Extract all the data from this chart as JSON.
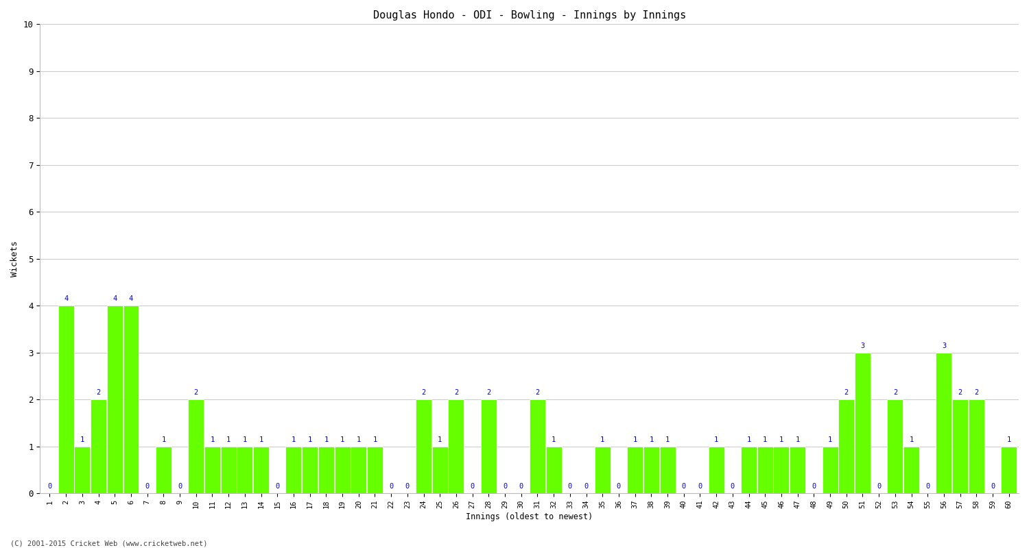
{
  "title": "Douglas Hondo - ODI - Bowling - Innings by Innings",
  "xlabel": "Innings (oldest to newest)",
  "ylabel": "Wickets",
  "background_color": "#ffffff",
  "bar_color": "#66ff00",
  "label_color": "#0000cc",
  "ylim": [
    0,
    10
  ],
  "yticks": [
    0,
    1,
    2,
    3,
    4,
    5,
    6,
    7,
    8,
    9,
    10
  ],
  "categories": [
    "1",
    "2",
    "3",
    "4",
    "5",
    "6",
    "7",
    "8",
    "9",
    "10",
    "11",
    "12",
    "13",
    "14",
    "15",
    "16",
    "17",
    "18",
    "19",
    "20",
    "21",
    "22",
    "23",
    "24",
    "25",
    "26",
    "27",
    "28",
    "29",
    "30",
    "31",
    "32",
    "33",
    "34",
    "35",
    "36",
    "37",
    "38",
    "39",
    "40",
    "41",
    "42",
    "43",
    "44",
    "45",
    "46",
    "47",
    "48",
    "49",
    "50",
    "51",
    "52",
    "53",
    "54",
    "55",
    "56",
    "57",
    "58",
    "59",
    "60"
  ],
  "values": [
    0,
    4,
    1,
    2,
    4,
    4,
    0,
    1,
    0,
    2,
    1,
    1,
    1,
    1,
    0,
    1,
    1,
    1,
    1,
    1,
    1,
    0,
    0,
    2,
    1,
    2,
    0,
    2,
    0,
    0,
    2,
    1,
    0,
    0,
    1,
    0,
    1,
    1,
    1,
    0,
    0,
    1,
    0,
    1,
    1,
    1,
    1,
    0,
    1,
    2,
    3,
    0,
    2,
    1,
    0,
    3,
    2,
    2,
    0,
    1
  ],
  "footnote": "(C) 2001-2015 Cricket Web (www.cricketweb.net)",
  "bar_width": 0.97,
  "label_fontsize": 7.5,
  "tick_fontsize": 7.5,
  "ylabel_fontsize": 9,
  "xlabel_fontsize": 8.5,
  "title_fontsize": 11
}
